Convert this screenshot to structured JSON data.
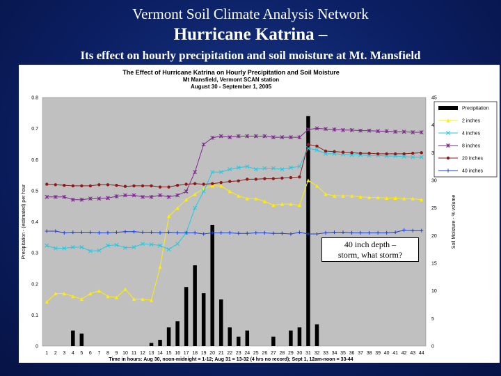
{
  "slide": {
    "title_line1": "Vermont Soil Climate Analysis Network",
    "title_line2": "Hurricane Katrina –",
    "title_line3": "Its effect on hourly precipitation and soil moisture at Mt. Mansfield"
  },
  "annotation": {
    "line1": "40 inch depth –",
    "line2": "storm, what storm?"
  },
  "chart_data": {
    "type": "bar+line",
    "title": [
      "The Effect of Hurricane Katrina on Hourly Precipitation and Soil Moisture",
      "Mt Mansfield, Vermont SCAN station",
      "August 30 - September 1, 2005"
    ],
    "xlabel": "Time in hours: Aug 30, noon-midnight = 1-12; Aug 31 = 13-32 (4 hrs no record); Sept 1, 12am-noon = 33-44",
    "ylabel_left": "Precipitation - (estimated) per hour",
    "ylabel_right": "Soil Moisture - % volume",
    "x": [
      1,
      2,
      3,
      4,
      5,
      6,
      7,
      8,
      9,
      10,
      11,
      12,
      13,
      14,
      15,
      16,
      17,
      18,
      19,
      20,
      21,
      22,
      23,
      24,
      25,
      26,
      27,
      28,
      29,
      30,
      31,
      32,
      33,
      34,
      35,
      36,
      37,
      38,
      39,
      40,
      41,
      42,
      43,
      44
    ],
    "x_tick_labels": [
      "1",
      "2",
      "3",
      "4",
      "5",
      "6",
      "7",
      "8",
      "9",
      "10",
      "11",
      "12",
      "13",
      "14",
      "15",
      "16",
      "17",
      "18",
      "19",
      "20",
      "21",
      "22",
      "23",
      "24",
      "25",
      "26",
      "27",
      "28",
      "29",
      "30",
      "31",
      "32",
      "33",
      "34",
      "35",
      "36",
      "37",
      "38",
      "39",
      "40",
      "41",
      "42",
      "43",
      "44"
    ],
    "ylim_left": [
      0,
      0.8
    ],
    "yticks_left": [
      "0",
      "0.1",
      "0.2",
      "0.3",
      "0.4",
      "0.5",
      "0.6",
      "0.7",
      "0.8"
    ],
    "ylim_right": [
      0,
      45
    ],
    "yticks_right": [
      "0",
      "5",
      "10",
      "15",
      "20",
      "25",
      "30",
      "35",
      "40",
      "45"
    ],
    "grid": false,
    "legend_position": "right-top",
    "precipitation": {
      "name": "Precipitation",
      "color": "#000000",
      "values": [
        0,
        0,
        0,
        0.05,
        0.04,
        0,
        0,
        0,
        0,
        0,
        0,
        0,
        0.01,
        0.02,
        0.06,
        0.08,
        0.19,
        0.26,
        0.17,
        0.39,
        0.15,
        0.06,
        0.03,
        0.05,
        0,
        0,
        0.03,
        0,
        0.05,
        0.06,
        0.74,
        0.07,
        0,
        0,
        0,
        0,
        0,
        0,
        0,
        0,
        0,
        0,
        0,
        0
      ]
    },
    "series": [
      {
        "name": "2 inches",
        "color": "#ffee00",
        "marker": "triangle",
        "values": [
          8,
          9.5,
          9.5,
          9,
          8.5,
          9.5,
          10,
          9,
          8.8,
          10.3,
          8.5,
          8.5,
          8.3,
          14.3,
          23.5,
          25,
          26.5,
          27.5,
          28.5,
          29,
          29,
          28,
          27.2,
          26.7,
          26.7,
          26.2,
          25.5,
          25.7,
          25.7,
          25.5,
          30,
          29,
          27.5,
          27.2,
          27.2,
          27.2,
          27,
          26.9,
          26.9,
          26.8,
          26.8,
          26.7,
          26.7,
          26.5
        ]
      },
      {
        "name": "4 inches",
        "color": "#22c8e0",
        "marker": "x",
        "values": [
          18.2,
          17.7,
          17.7,
          17.9,
          17.9,
          17.2,
          17.3,
          18.2,
          18.3,
          17.8,
          17.9,
          18.5,
          18.4,
          18.2,
          17.5,
          18.5,
          20.5,
          25,
          28,
          31.5,
          31.5,
          32,
          32.3,
          32.5,
          32,
          32.2,
          32.2,
          32,
          32.3,
          32.5,
          35.8,
          35.5,
          34.8,
          34.8,
          34.7,
          34.6,
          34.6,
          34.5,
          34.5,
          34.4,
          34.4,
          34.3,
          34.2,
          34.2
        ]
      },
      {
        "name": "8 inches",
        "color": "#7a2a8a",
        "marker": "star",
        "values": [
          27,
          27,
          27,
          26.5,
          26.5,
          26.7,
          26.7,
          26.8,
          27.1,
          27.3,
          27.3,
          27,
          27,
          27.3,
          27,
          27.3,
          28,
          31.5,
          36.5,
          37.7,
          38,
          37.8,
          38,
          38,
          38,
          38,
          37.8,
          37.8,
          37.8,
          37.8,
          39.2,
          39.4,
          39.3,
          39.2,
          39.1,
          39.1,
          39,
          39,
          38.9,
          38.9,
          38.8,
          38.8,
          38.7,
          38.7
        ]
      },
      {
        "name": "20 inches",
        "color": "#8b1a1a",
        "marker": "circle",
        "values": [
          29.3,
          29.2,
          29.1,
          29,
          29,
          29,
          29.2,
          29.2,
          29.1,
          28.9,
          29,
          29,
          29,
          28.8,
          28.8,
          29.1,
          29.3,
          29.4,
          29.3,
          29.4,
          29.6,
          29.8,
          29.9,
          30.2,
          30.2,
          30.3,
          30.3,
          30.4,
          30.5,
          30.6,
          36.5,
          36.2,
          35.3,
          35.2,
          35.1,
          35,
          34.9,
          34.9,
          34.8,
          34.8,
          34.8,
          34.8,
          34.9,
          35
        ]
      },
      {
        "name": "40 inches",
        "color": "#1e3fd0",
        "marker": "plus",
        "values": [
          20.8,
          20.8,
          20.5,
          20.6,
          20.6,
          20.6,
          20.5,
          20.5,
          20.6,
          20.7,
          20.7,
          20.6,
          20.6,
          20.5,
          20.6,
          20.5,
          20.5,
          20.5,
          20.3,
          20.5,
          20.5,
          20.5,
          20.4,
          20.4,
          20.5,
          20.5,
          20.4,
          20.4,
          20.3,
          20.6,
          20.3,
          20.3,
          20.5,
          20.6,
          20.6,
          20.5,
          20.5,
          20.5,
          20.5,
          20.5,
          20.6,
          21,
          20.9,
          20.9
        ]
      }
    ]
  }
}
